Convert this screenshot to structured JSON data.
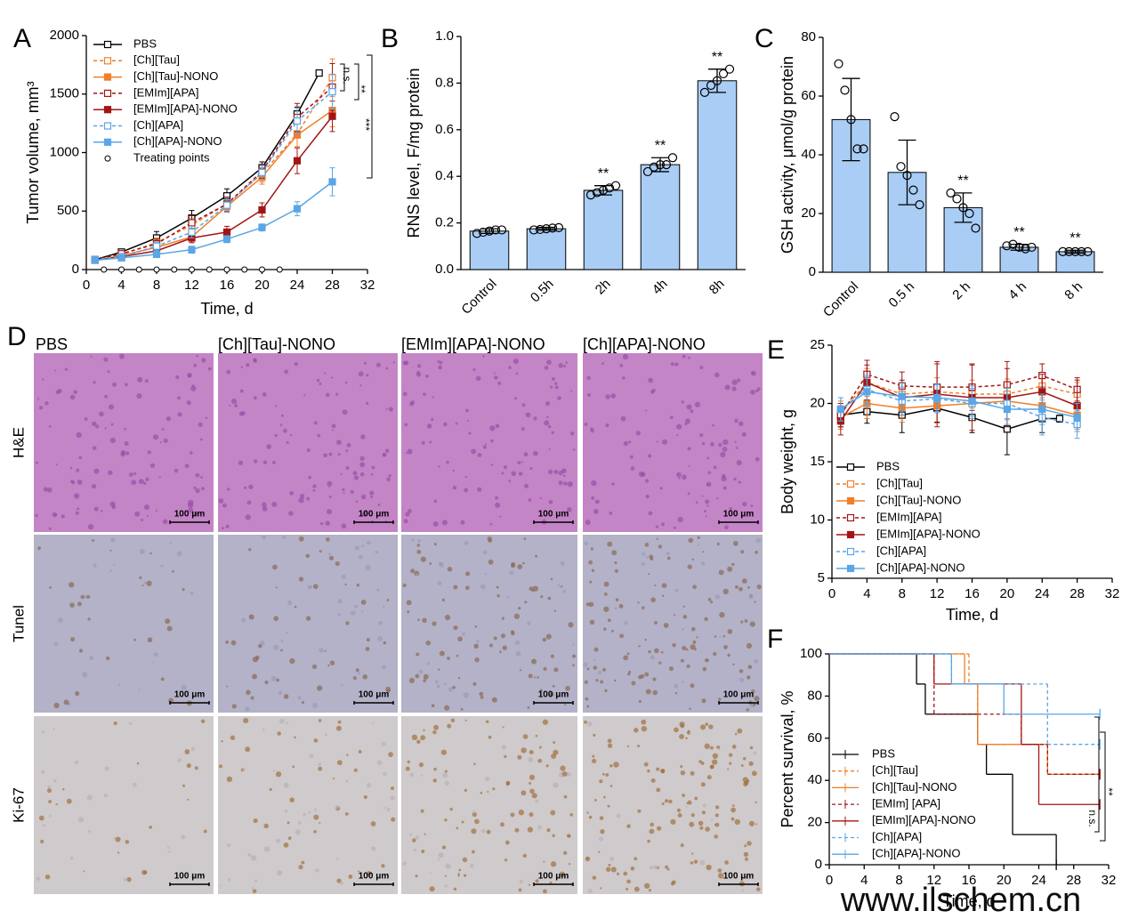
{
  "chart_data": [
    {
      "type": "line",
      "panel": "A",
      "xlabel": "Time, d",
      "ylabel": "Tumor volume, mm³",
      "xlim": [
        0,
        32
      ],
      "xticks": [
        0,
        4,
        8,
        12,
        16,
        20,
        24,
        28,
        32
      ],
      "ylim": [
        0,
        2000
      ],
      "yticks": [
        0,
        500,
        1000,
        1500,
        2000
      ],
      "legend": "upper left",
      "series": [
        {
          "name": "PBS",
          "color": "#000000",
          "dashed": false,
          "marker": "open-square",
          "x": [
            1,
            4,
            8,
            12,
            16,
            20,
            24,
            26.5
          ],
          "values": [
            85,
            150,
            270,
            440,
            630,
            870,
            1330,
            1680
          ],
          "errors": [
            10,
            25,
            55,
            65,
            60,
            50,
            60,
            20
          ]
        },
        {
          "name": "[Ch][Tau]",
          "color": "#f07f2a",
          "dashed": true,
          "marker": "open-square",
          "x": [
            1,
            4,
            8,
            12,
            16,
            20,
            24,
            28
          ],
          "values": [
            85,
            130,
            230,
            380,
            560,
            820,
            1160,
            1640
          ],
          "errors": [
            10,
            20,
            40,
            60,
            60,
            70,
            110,
            160
          ]
        },
        {
          "name": "[Ch][Tau]-NONO",
          "color": "#f07f2a",
          "dashed": false,
          "marker": "square",
          "x": [
            1,
            4,
            8,
            12,
            16,
            20,
            24,
            28
          ],
          "values": [
            80,
            120,
            190,
            280,
            540,
            790,
            1150,
            1360
          ],
          "errors": [
            10,
            20,
            35,
            50,
            50,
            60,
            100,
            140
          ]
        },
        {
          "name": "[EMIm][APA]",
          "color": "#a31515",
          "dashed": true,
          "marker": "open-square",
          "x": [
            1,
            4,
            8,
            12,
            16,
            20,
            24,
            28
          ],
          "values": [
            85,
            135,
            220,
            400,
            560,
            840,
            1300,
            1560
          ],
          "errors": [
            10,
            20,
            40,
            60,
            60,
            60,
            120,
            200
          ]
        },
        {
          "name": "[EMIm][APA]-NONO",
          "color": "#a31515",
          "dashed": false,
          "marker": "square",
          "x": [
            1,
            4,
            8,
            12,
            16,
            20,
            24,
            28
          ],
          "values": [
            80,
            110,
            160,
            270,
            320,
            510,
            930,
            1310
          ],
          "errors": [
            10,
            20,
            30,
            40,
            50,
            60,
            110,
            130
          ]
        },
        {
          "name": "[Ch][APA]",
          "color": "#5aa6e6",
          "dashed": true,
          "marker": "open-square",
          "x": [
            1,
            4,
            8,
            12,
            16,
            20,
            24,
            28
          ],
          "values": [
            85,
            110,
            200,
            320,
            550,
            830,
            1270,
            1520
          ],
          "errors": [
            10,
            20,
            35,
            50,
            60,
            60,
            110,
            150
          ]
        },
        {
          "name": "[Ch][APA]-NONO",
          "color": "#5aa6e6",
          "dashed": false,
          "marker": "square",
          "x": [
            1,
            4,
            8,
            12,
            16,
            20,
            24,
            28
          ],
          "values": [
            80,
            100,
            130,
            170,
            260,
            360,
            520,
            750
          ],
          "errors": [
            10,
            15,
            20,
            30,
            30,
            30,
            60,
            120
          ]
        },
        {
          "name": "Treating points",
          "color": "#000000",
          "line": false,
          "marker": "open-circle",
          "x": [
            2,
            4,
            6,
            8,
            10,
            12,
            14,
            16,
            18,
            20,
            22
          ],
          "values": [
            0,
            0,
            0,
            0,
            0,
            0,
            0,
            0,
            0,
            0,
            0
          ]
        }
      ],
      "annotations": [
        "n.s.",
        "**",
        "***"
      ]
    },
    {
      "type": "bar",
      "panel": "B",
      "ylabel": "RNS level, F/mg protein",
      "color": "#a9cdf5",
      "ylim": [
        0,
        1
      ],
      "yticks": [
        {
          "value": 0,
          "label": "0.0"
        },
        0.2,
        0.4,
        0.6,
        0.8,
        {
          "value": 1,
          "label": "1.0"
        }
      ],
      "categories": [
        "Control",
        "0.5h",
        "2h",
        "4h",
        "8h"
      ],
      "values": [
        0.165,
        0.175,
        0.34,
        0.45,
        0.81
      ],
      "errors": [
        0.01,
        0.006,
        0.02,
        0.03,
        0.05
      ],
      "points": [
        [
          0.155,
          0.16,
          0.165,
          0.17,
          0.17
        ],
        [
          0.17,
          0.172,
          0.175,
          0.178,
          0.18
        ],
        [
          0.32,
          0.33,
          0.34,
          0.35,
          0.36
        ],
        [
          0.42,
          0.44,
          0.45,
          0.45,
          0.48
        ],
        [
          0.76,
          0.79,
          0.81,
          0.84,
          0.86
        ]
      ],
      "annotations": [
        null,
        null,
        "**",
        "**",
        "**"
      ]
    },
    {
      "type": "bar",
      "panel": "C",
      "ylabel": "GSH activity, μmol/g protein",
      "color": "#a9cdf5",
      "ylim": [
        0,
        80
      ],
      "yticks": [
        0,
        20,
        40,
        60,
        80
      ],
      "categories": [
        "Control",
        "0.5 h",
        "2 h",
        "4 h",
        "8 h"
      ],
      "values": [
        52,
        34,
        22,
        8.5,
        7
      ],
      "errors": [
        14,
        11,
        5,
        1,
        0.5
      ],
      "points": [
        [
          71,
          62,
          52,
          42,
          42
        ],
        [
          53,
          36,
          33,
          28,
          23
        ],
        [
          27,
          25,
          22,
          20,
          15
        ],
        [
          9,
          9.5,
          8.5,
          8,
          8.5
        ],
        [
          7,
          7,
          7,
          7,
          7
        ]
      ],
      "annotations": [
        null,
        null,
        "**",
        "**",
        "**"
      ]
    },
    {
      "type": "line",
      "panel": "E",
      "xlabel": "Time, d",
      "ylabel": "Body weight, g",
      "xlim": [
        0,
        32
      ],
      "xticks": [
        0,
        4,
        8,
        12,
        16,
        20,
        24,
        28,
        32
      ],
      "ylim": [
        5,
        25
      ],
      "yticks": [
        5,
        10,
        15,
        20,
        25
      ],
      "legend": "lower left",
      "series": [
        {
          "name": "PBS",
          "color": "#000000",
          "dashed": false,
          "marker": "open-square",
          "x": [
            1,
            4,
            8,
            12,
            16,
            20,
            24,
            26
          ],
          "values": [
            19,
            19.3,
            19,
            19.6,
            18.8,
            17.8,
            18.7,
            18.7
          ],
          "errors": [
            1,
            1,
            1.5,
            1.2,
            1.3,
            2.2,
            1.2,
            0.3
          ]
        },
        {
          "name": "[Ch][Tau]",
          "color": "#f07f2a",
          "dashed": true,
          "marker": "open-square",
          "x": [
            1,
            4,
            8,
            12,
            16,
            20,
            24,
            28
          ],
          "values": [
            19.2,
            21.8,
            20.8,
            21,
            20.8,
            20.8,
            21.5,
            20.8
          ],
          "errors": [
            1,
            1.2,
            1,
            1.2,
            1.2,
            1.3,
            1,
            1
          ]
        },
        {
          "name": "[Ch][Tau]-NONO",
          "color": "#f07f2a",
          "dashed": false,
          "marker": "square",
          "x": [
            1,
            4,
            8,
            12,
            16,
            20,
            24,
            28
          ],
          "values": [
            18.8,
            20,
            19.6,
            19.8,
            20,
            20.2,
            19.8,
            19
          ],
          "errors": [
            1,
            1.3,
            1.2,
            1.5,
            1.5,
            1.6,
            1.3,
            1.2
          ]
        },
        {
          "name": "[EMIm][APA]",
          "color": "#a31515",
          "dashed": true,
          "marker": "open-square",
          "x": [
            1,
            4,
            8,
            12,
            16,
            20,
            24,
            28
          ],
          "values": [
            19,
            22.5,
            21.5,
            21.4,
            21.4,
            21.6,
            22.4,
            21.2
          ],
          "errors": [
            1,
            1.2,
            1.2,
            2,
            2,
            2,
            1,
            1
          ]
        },
        {
          "name": "[EMIm][APA]-NONO",
          "color": "#a31515",
          "dashed": false,
          "marker": "square",
          "x": [
            1,
            4,
            8,
            12,
            16,
            20,
            24,
            28
          ],
          "values": [
            18.5,
            21.8,
            20.5,
            20.8,
            20.5,
            20.5,
            21,
            19.8
          ],
          "errors": [
            1.2,
            1.5,
            1.5,
            2.8,
            2.8,
            2.5,
            1.5,
            2.2
          ]
        },
        {
          "name": "[Ch][APA]",
          "color": "#5aa6e6",
          "dashed": true,
          "marker": "open-square",
          "x": [
            1,
            4,
            8,
            12,
            16,
            20,
            24,
            28
          ],
          "values": [
            19.5,
            21.2,
            20.2,
            20.4,
            20,
            20,
            18.8,
            18.2
          ],
          "errors": [
            1,
            1.2,
            1.2,
            1.2,
            1.3,
            1.3,
            1.5,
            1.2
          ]
        },
        {
          "name": "[Ch][APA]-NONO",
          "color": "#5aa6e6",
          "dashed": false,
          "marker": "square",
          "x": [
            1,
            4,
            8,
            12,
            16,
            20,
            24,
            28
          ],
          "values": [
            19.5,
            21,
            20.6,
            20.5,
            20.2,
            19.5,
            19.5,
            18.8
          ],
          "errors": [
            1,
            1.2,
            1.2,
            1.2,
            1.3,
            1.3,
            1.3,
            1.2
          ]
        }
      ]
    },
    {
      "type": "step",
      "panel": "F",
      "xlabel": "Time, d",
      "ylabel": "Percent survival, %",
      "xlim": [
        0,
        32
      ],
      "xticks": [
        0,
        4,
        8,
        12,
        16,
        20,
        24,
        28,
        32
      ],
      "ylim": [
        0,
        100
      ],
      "yticks": [
        0,
        20,
        40,
        60,
        80,
        100
      ],
      "legend": "lower left",
      "series": [
        {
          "name": "PBS",
          "color": "#000000",
          "dashed": false,
          "x": [
            0,
            10,
            11,
            17,
            18,
            21,
            26
          ],
          "values": [
            100,
            85.7,
            71.4,
            57.1,
            42.9,
            14.3,
            0
          ]
        },
        {
          "name": "[Ch][Tau]",
          "color": "#f07f2a",
          "dashed": true,
          "x": [
            0,
            16,
            17,
            25,
            31
          ],
          "values": [
            100,
            85.7,
            57.1,
            42.9,
            42.9
          ]
        },
        {
          "name": "[Ch][Tau]-NONO",
          "color": "#f07f2a",
          "dashed": false,
          "x": [
            0,
            15.5,
            17,
            25,
            31
          ],
          "values": [
            100,
            85.7,
            57.1,
            42.9,
            42.9
          ]
        },
        {
          "name": "[EMIm] [APA]",
          "color": "#a31515",
          "dashed": true,
          "x": [
            0,
            12,
            22,
            25,
            31
          ],
          "values": [
            100,
            71.4,
            57.1,
            42.9,
            42.9
          ]
        },
        {
          "name": "[EMIm][APA]-NONO",
          "color": "#a31515",
          "dashed": false,
          "x": [
            0,
            12,
            22,
            24,
            31
          ],
          "values": [
            100,
            85.7,
            57.1,
            28.6,
            28.6
          ]
        },
        {
          "name": "[Ch][APA]",
          "color": "#5aa6e6",
          "dashed": true,
          "x": [
            0,
            14,
            20.5,
            25,
            31
          ],
          "values": [
            100,
            85.7,
            85.7,
            57.1,
            57.1
          ]
        },
        {
          "name": "[Ch][APA]-NONO",
          "color": "#5aa6e6",
          "dashed": false,
          "x": [
            0,
            14,
            20,
            31
          ],
          "values": [
            100,
            85.7,
            71.4,
            71.4
          ]
        }
      ],
      "annotations": [
        "n.s.",
        "**"
      ]
    }
  ],
  "histology": {
    "panel": "D",
    "columns": [
      "PBS",
      "[Ch][Tau]-NONO",
      "[EMIm][APA]-NONO",
      "[Ch][APA]-NONO"
    ],
    "rows": [
      "H&E",
      "Tunel",
      "Ki-67"
    ],
    "scale_bar": "100 μm"
  },
  "watermark": "www.ilschem.cn"
}
